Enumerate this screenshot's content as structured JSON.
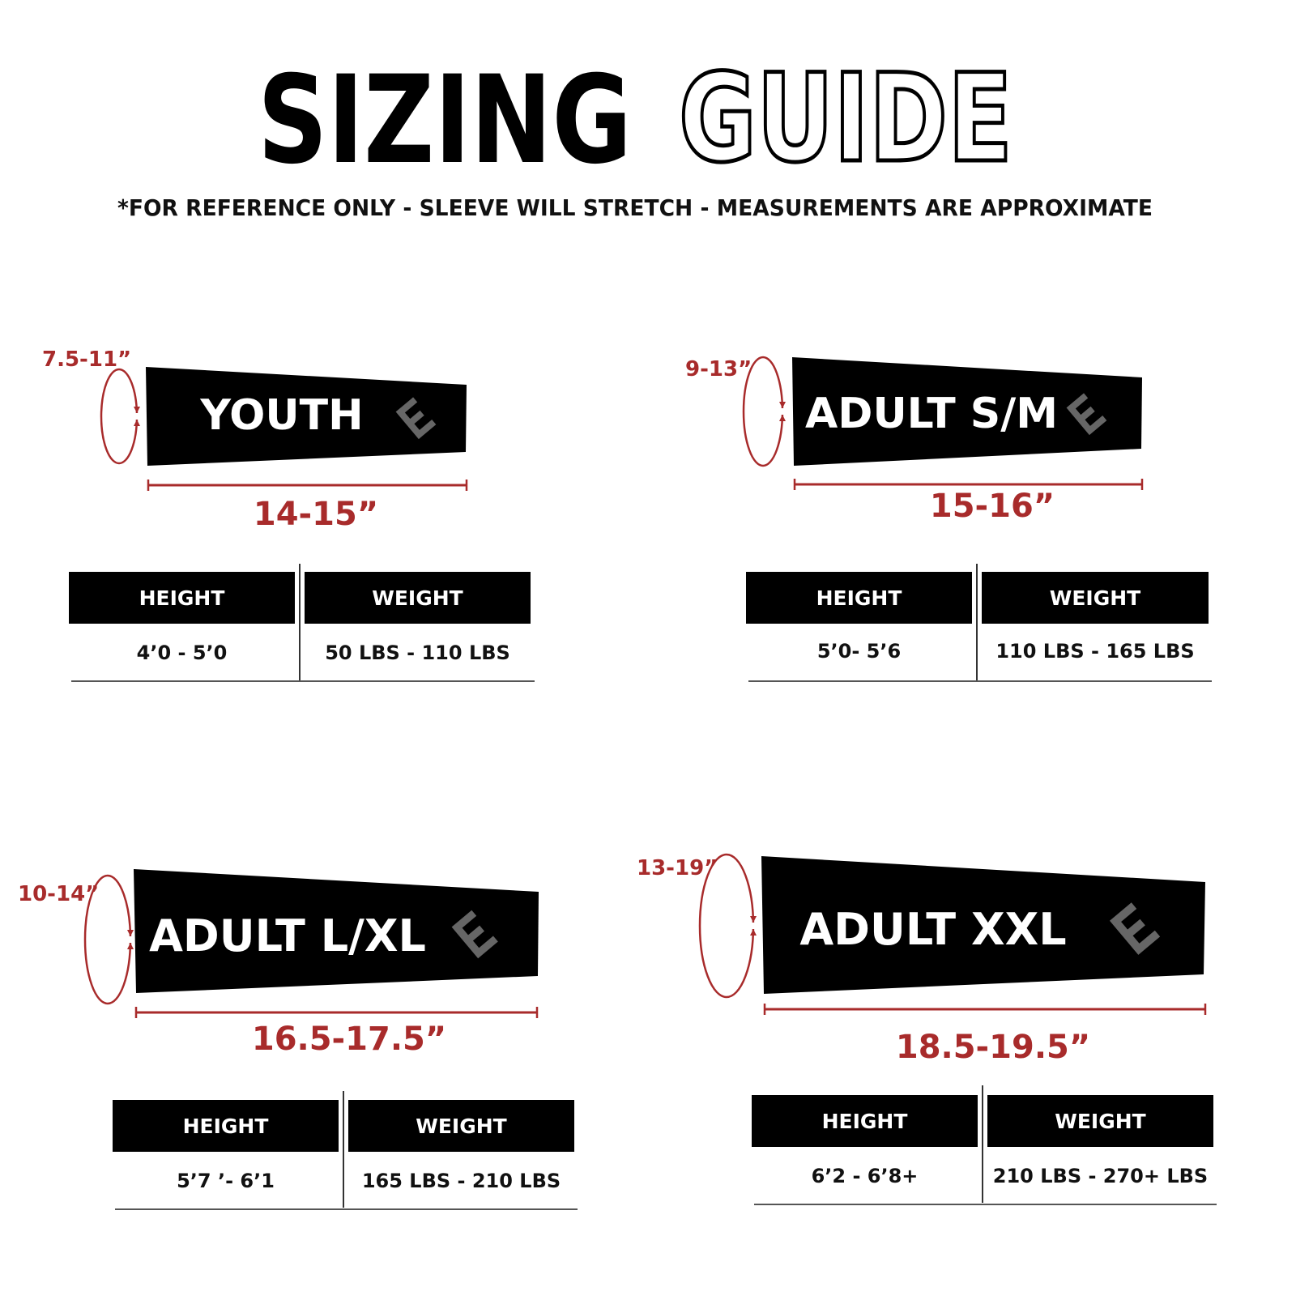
{
  "title": {
    "solid": "SIZING",
    "outline": "GUIDE"
  },
  "subtitle": "*FOR REFERENCE ONLY - SLEEVE WILL STRETCH - MEASUREMENTS ARE APPROXIMATE",
  "colors": {
    "accent_red": "#a82b2b",
    "sleeve": "#000000",
    "logo_gray": "#666666",
    "text": "#111111"
  },
  "sizes": [
    {
      "name": "YOUTH",
      "circumference": "7.5-11”",
      "length": "14-15”",
      "height_header": "HEIGHT",
      "weight_header": "WEIGHT",
      "height": "4’0 - 5’0",
      "weight": "50 LBS - 110 LBS",
      "logo_icon": "brand-e-logo"
    },
    {
      "name": "ADULT S/M",
      "circumference": "9-13”",
      "length": "15-16”",
      "height_header": "HEIGHT",
      "weight_header": "WEIGHT",
      "height": "5’0- 5’6",
      "weight": "110 LBS - 165 LBS",
      "logo_icon": "brand-e-logo"
    },
    {
      "name": "ADULT L/XL",
      "circumference": "10-14”",
      "length": "16.5-17.5”",
      "height_header": "HEIGHT",
      "weight_header": "WEIGHT",
      "height": "5’7 ’- 6’1",
      "weight": "165 LBS - 210 LBS",
      "logo_icon": "brand-e-logo"
    },
    {
      "name": "ADULT XXL",
      "circumference": "13-19”",
      "length": "18.5-19.5”",
      "height_header": "HEIGHT",
      "weight_header": "WEIGHT",
      "height": "6’2 - 6’8+",
      "weight": "210 LBS - 270+ LBS",
      "logo_icon": "brand-e-logo"
    }
  ]
}
